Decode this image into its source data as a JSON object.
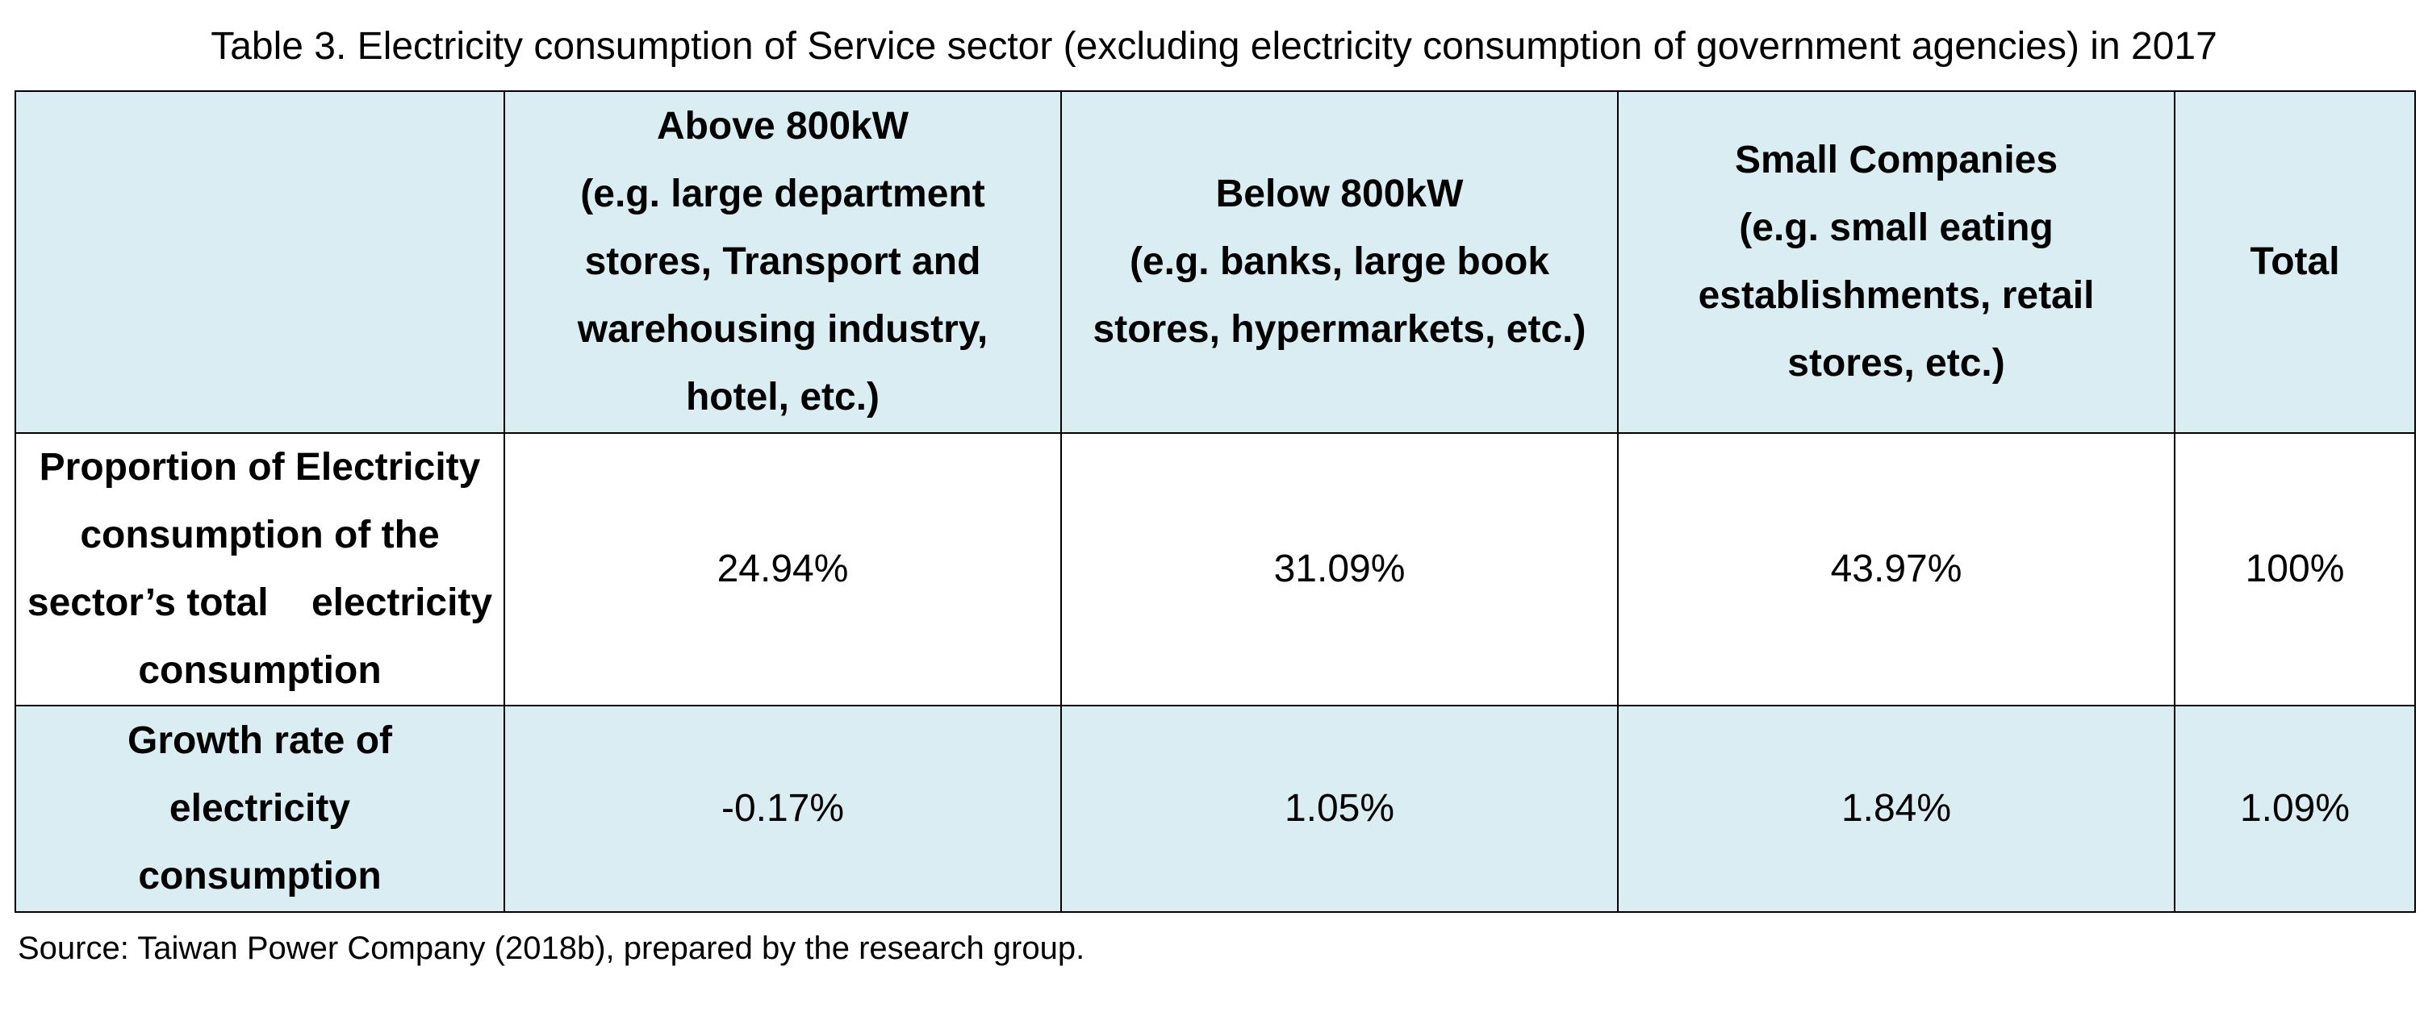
{
  "title": "Table 3. Electricity consumption of Service sector (excluding electricity consumption of government agencies) in 2017",
  "columns": [
    {
      "lines": [
        "Above 800kW",
        "(e.g. large department",
        "stores, Transport and",
        "warehousing industry,",
        "hotel, etc.)"
      ]
    },
    {
      "lines": [
        "Below 800kW",
        "(e.g. banks, large book",
        "stores, hypermarkets, etc.)"
      ]
    },
    {
      "lines": [
        "Small Companies",
        "(e.g. small eating",
        "establishments, retail",
        "stores, etc.)"
      ]
    },
    {
      "lines": [
        "Total"
      ]
    }
  ],
  "rows": [
    {
      "label_lines": [
        "Proportion of Electricity",
        "consumption of the",
        "sector’s total    electricity",
        "consumption"
      ],
      "values": [
        "24.94%",
        "31.09%",
        "43.97%",
        "100%"
      ]
    },
    {
      "label_lines": [
        "Growth rate of",
        "electricity",
        "consumption"
      ],
      "values": [
        "-0.17%",
        "1.05%",
        "1.84%",
        "1.09%"
      ]
    }
  ],
  "source": "Source: Taiwan Power Company (2018b), prepared by the research group.",
  "colors": {
    "header_fill": "#daedf3",
    "body_fill": "#ffffff",
    "border": "#000000"
  }
}
